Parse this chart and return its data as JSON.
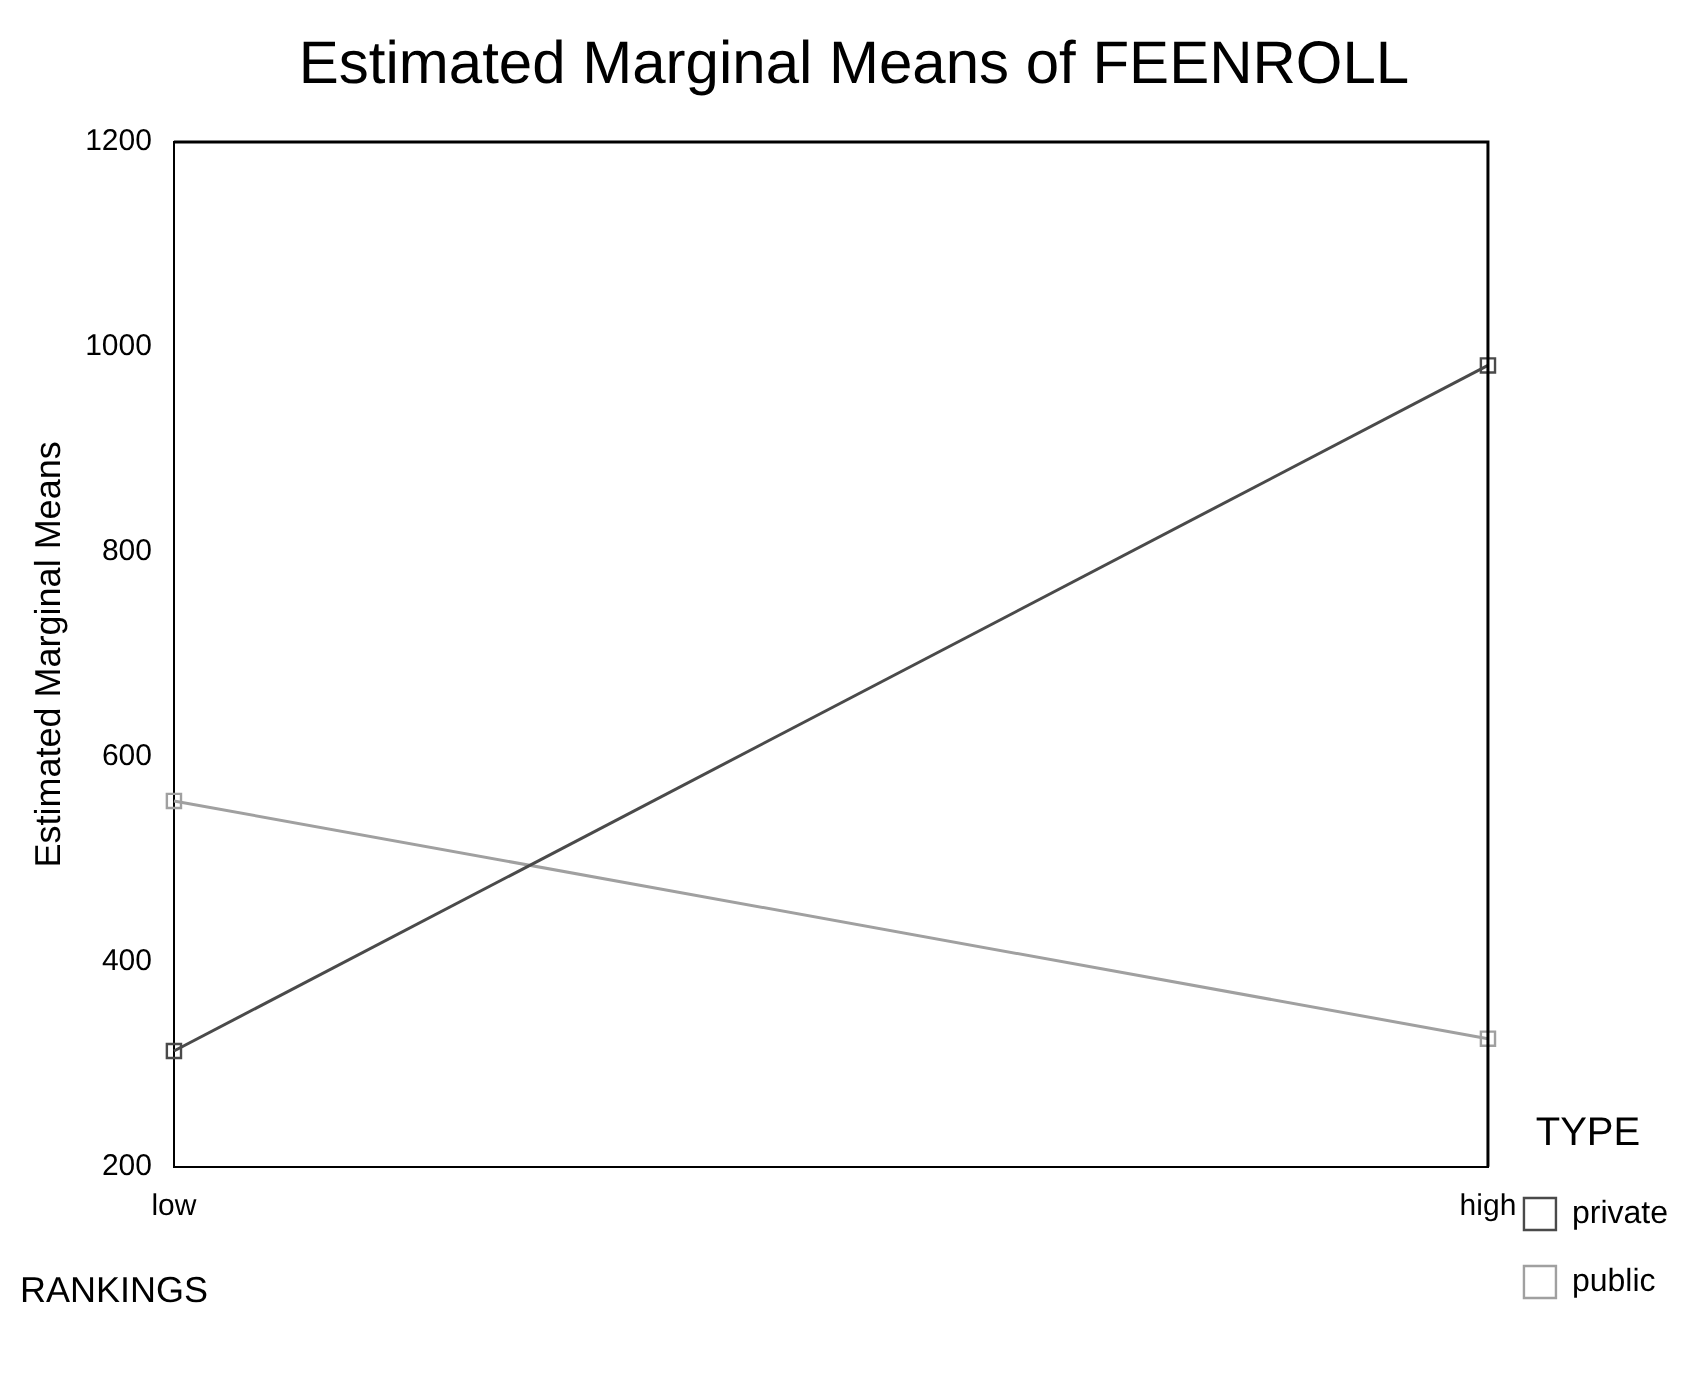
{
  "chart_data": {
    "type": "line",
    "title": "Estimated Marginal Means of FEENROLL",
    "xlabel": "RANKINGS",
    "ylabel": "Estimated Marginal Means",
    "legend_title": "TYPE",
    "categories": [
      "low",
      "high"
    ],
    "series": [
      {
        "name": "private",
        "color": "#4a4a4a",
        "values": [
          313,
          982
        ]
      },
      {
        "name": "public",
        "color": "#a0a0a0",
        "values": [
          557,
          325
        ]
      }
    ],
    "ylim": [
      200,
      1200
    ],
    "yticks": [
      200,
      400,
      600,
      800,
      1000,
      1200
    ],
    "grid": false,
    "legend": "right",
    "marker": "square",
    "line_style": "solid"
  }
}
